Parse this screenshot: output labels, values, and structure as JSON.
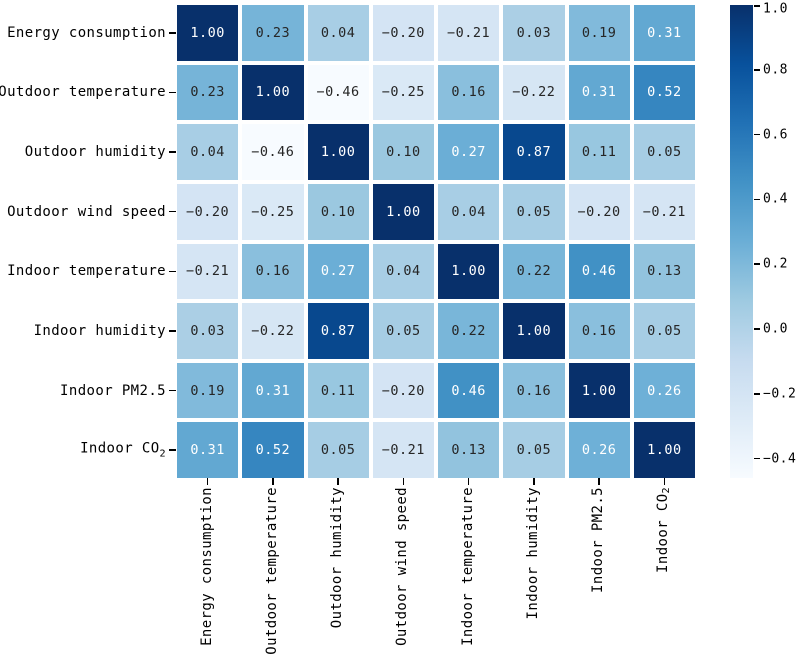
{
  "figure": {
    "background": "#ffffff",
    "title": ""
  },
  "chart_data": {
    "type": "heatmap",
    "title": "",
    "xlabel": "",
    "ylabel": "",
    "variables": [
      "Energy consumption",
      "Outdoor temperature",
      "Outdoor humidity",
      "Outdoor wind speed",
      "Indoor temperature",
      "Indoor humidity",
      "Indoor PM2.5",
      "Indoor CO2"
    ],
    "matrix": [
      [
        1.0,
        0.23,
        0.04,
        -0.2,
        -0.21,
        0.03,
        0.19,
        0.31
      ],
      [
        0.23,
        1.0,
        -0.46,
        -0.25,
        0.16,
        -0.22,
        0.31,
        0.52
      ],
      [
        0.04,
        -0.46,
        1.0,
        0.1,
        0.27,
        0.87,
        0.11,
        0.05
      ],
      [
        -0.2,
        -0.25,
        0.1,
        1.0,
        0.04,
        0.05,
        -0.2,
        -0.21
      ],
      [
        -0.21,
        0.16,
        0.27,
        0.04,
        1.0,
        0.22,
        0.46,
        0.13
      ],
      [
        0.03,
        -0.22,
        0.87,
        0.05,
        0.22,
        1.0,
        0.16,
        0.05
      ],
      [
        0.19,
        0.31,
        0.11,
        -0.2,
        0.46,
        0.16,
        1.0,
        0.26
      ],
      [
        0.31,
        0.52,
        0.05,
        -0.21,
        0.13,
        0.05,
        0.26,
        1.0
      ]
    ],
    "value_decimals": 2,
    "vmin": -0.46,
    "vmax": 1.0,
    "colormap": {
      "name": "Blues",
      "anchors": [
        "#f7fbff",
        "#deebf7",
        "#c6dbef",
        "#9ecae1",
        "#6baed6",
        "#4292c6",
        "#2171b5",
        "#08519c",
        "#08306b"
      ]
    },
    "grid_line_color": "#ffffff",
    "annotation_colors": {
      "light_text": "#ffffff",
      "dark_text": "#262626"
    },
    "colorbar": {
      "position": "right",
      "ticks": [
        "1.0",
        "0.8",
        "0.6",
        "0.4",
        "0.2",
        "0.0",
        "-0.2",
        "-0.4"
      ]
    },
    "legend": "none",
    "grid": "off"
  }
}
